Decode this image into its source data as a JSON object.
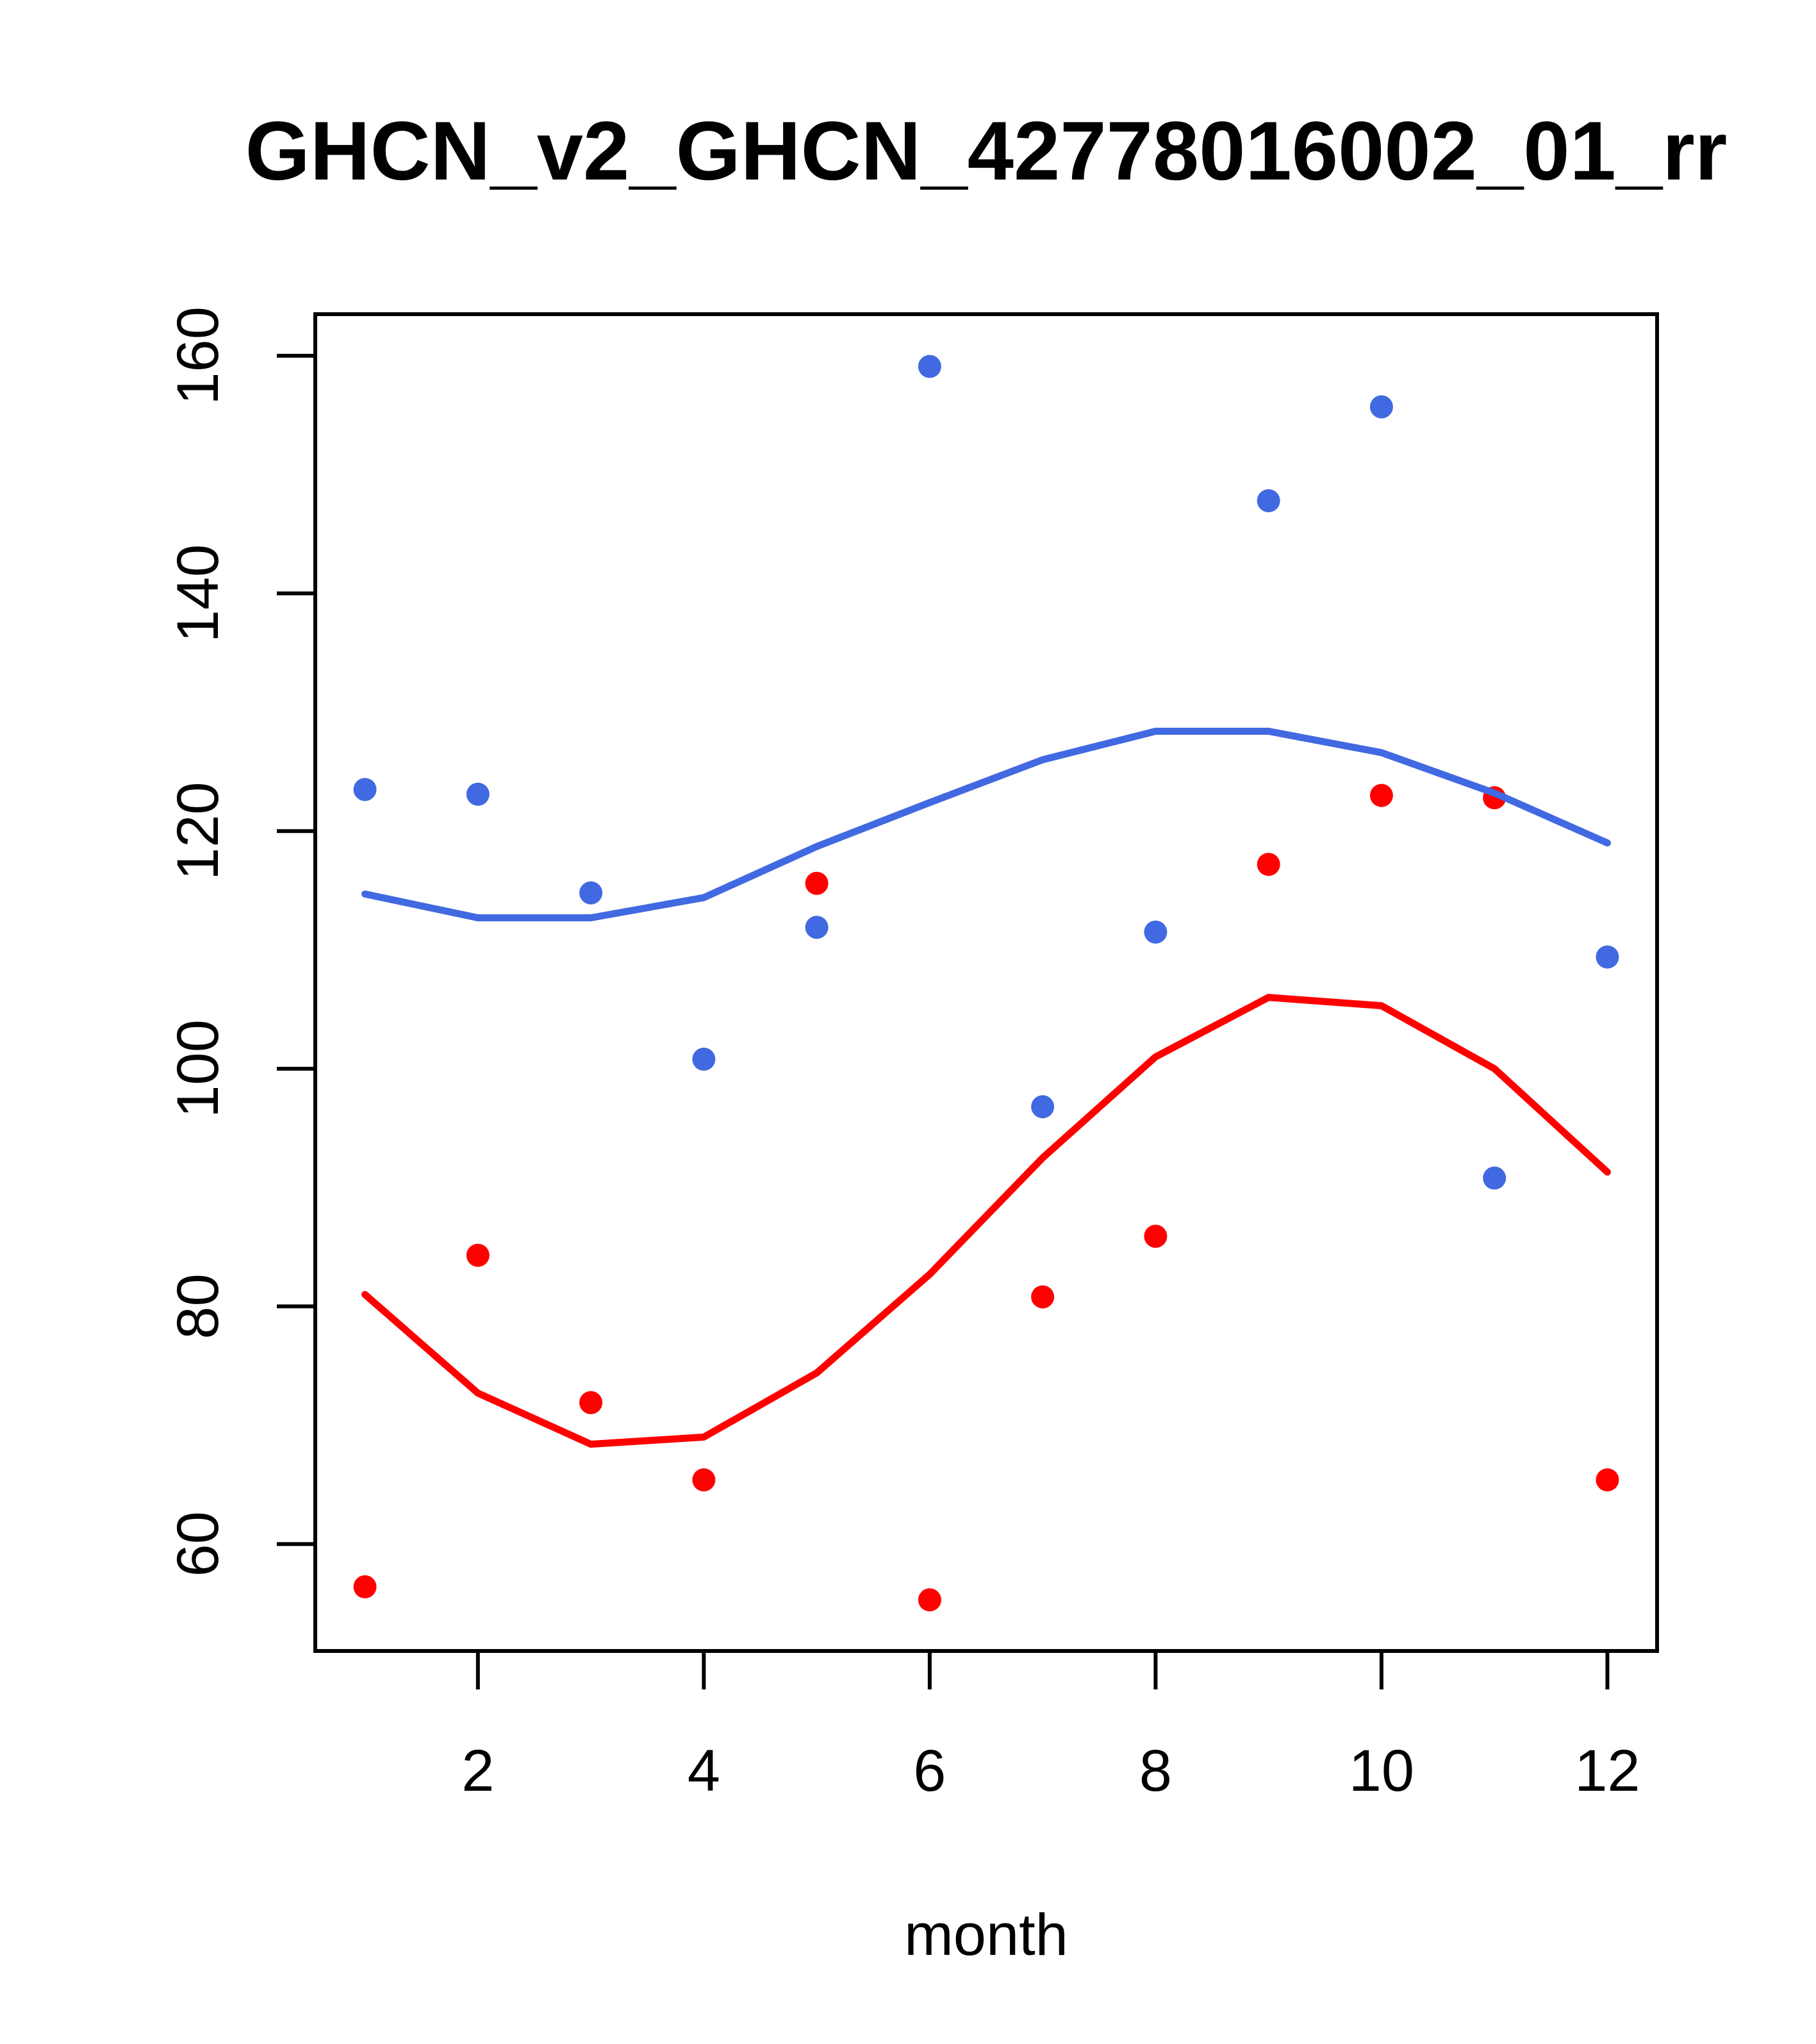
{
  "chart_data": {
    "type": "scatter",
    "title": "GHCN_v2_GHCN_42778016002_01_rr",
    "xlabel": "month",
    "ylabel": "",
    "grid": false,
    "legend": "none",
    "axis_color": "#000000",
    "background_color": "#ffffff",
    "xlim": [
      0.56,
      12.44
    ],
    "ylim": [
      51.0,
      163.5
    ],
    "x_ticks": [
      "2",
      "4",
      "6",
      "8",
      "10",
      "12"
    ],
    "x_tick_values": [
      2,
      4,
      6,
      8,
      10,
      12
    ],
    "y_ticks": [
      "60",
      "80",
      "100",
      "120",
      "140",
      "160"
    ],
    "y_tick_values": [
      60,
      80,
      100,
      120,
      140,
      160
    ],
    "x": [
      1,
      2,
      3,
      4,
      5,
      6,
      7,
      8,
      9,
      10,
      11,
      12
    ],
    "series": [
      {
        "name": "blue-points",
        "type": "scatter",
        "color": "#4169E1",
        "values": [
          123.5,
          123.1,
          114.8,
          100.8,
          111.9,
          159.1,
          96.8,
          111.5,
          147.8,
          155.7,
          90.8,
          109.4
        ]
      },
      {
        "name": "red-points",
        "type": "scatter",
        "color": "#FF0000",
        "values": [
          56.4,
          84.3,
          71.9,
          65.4,
          115.6,
          55.3,
          80.8,
          85.9,
          117.2,
          123.0,
          122.8,
          65.4
        ]
      },
      {
        "name": "blue-loess-line",
        "type": "line",
        "color": "#4169E1",
        "values": [
          114.7,
          112.7,
          112.7,
          114.4,
          118.7,
          122.4,
          126.0,
          128.4,
          128.4,
          126.6,
          123.2,
          119.0
        ]
      },
      {
        "name": "red-loess-line",
        "type": "line",
        "color": "#FF0000",
        "values": [
          81.0,
          72.7,
          68.4,
          69.0,
          74.4,
          82.7,
          92.5,
          101.0,
          106.0,
          105.3,
          100.0,
          91.3
        ]
      }
    ]
  }
}
